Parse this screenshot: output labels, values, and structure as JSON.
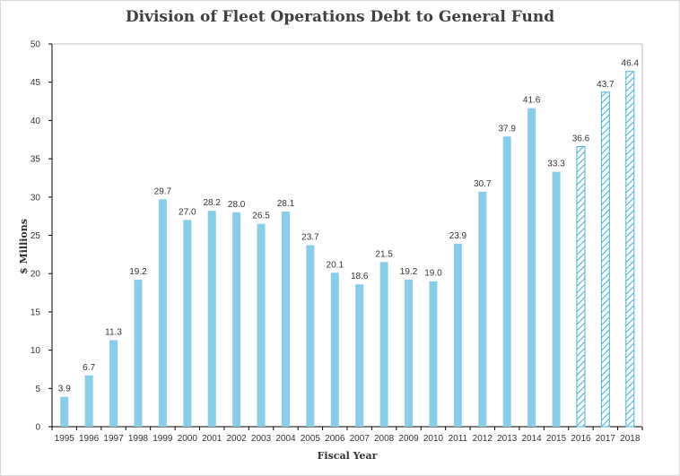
{
  "chart_data": {
    "type": "bar",
    "title": "Division of Fleet Operations Debt to General Fund",
    "xlabel": "Fiscal Year",
    "ylabel": "$ Millions",
    "ylim": [
      0,
      50
    ],
    "yticks": [
      0,
      5,
      10,
      15,
      20,
      25,
      30,
      35,
      40,
      45,
      50
    ],
    "grid": false,
    "legend": "none",
    "categories": [
      "1995",
      "1996",
      "1997",
      "1998",
      "1999",
      "2000",
      "2001",
      "2002",
      "2003",
      "2004",
      "2005",
      "2006",
      "2007",
      "2008",
      "2009",
      "2010",
      "2011",
      "2012",
      "2013",
      "2014",
      "2015",
      "2016",
      "2017",
      "2018"
    ],
    "values": [
      3.9,
      6.7,
      11.3,
      19.2,
      29.7,
      27.0,
      28.2,
      28.0,
      26.5,
      28.1,
      23.7,
      20.1,
      18.6,
      21.5,
      19.2,
      19.0,
      23.9,
      30.7,
      37.9,
      41.6,
      33.3,
      36.6,
      43.7,
      46.4
    ],
    "data_labels": [
      "3.9",
      "6.7",
      "11.3",
      "19.2",
      "29.7",
      "27.0",
      "28.2",
      "28.0",
      "26.5",
      "28.1",
      "23.7",
      "20.1",
      "18.6",
      "21.5",
      "19.2",
      "19.0",
      "23.9",
      "30.7",
      "37.9",
      "41.6",
      "33.3",
      "36.6",
      "43.7",
      "46.4"
    ],
    "projected_from": "2016",
    "colors": {
      "actual": "#87ceeb",
      "projected_hatch": "#4fb3d9",
      "axis": "#000000"
    }
  }
}
